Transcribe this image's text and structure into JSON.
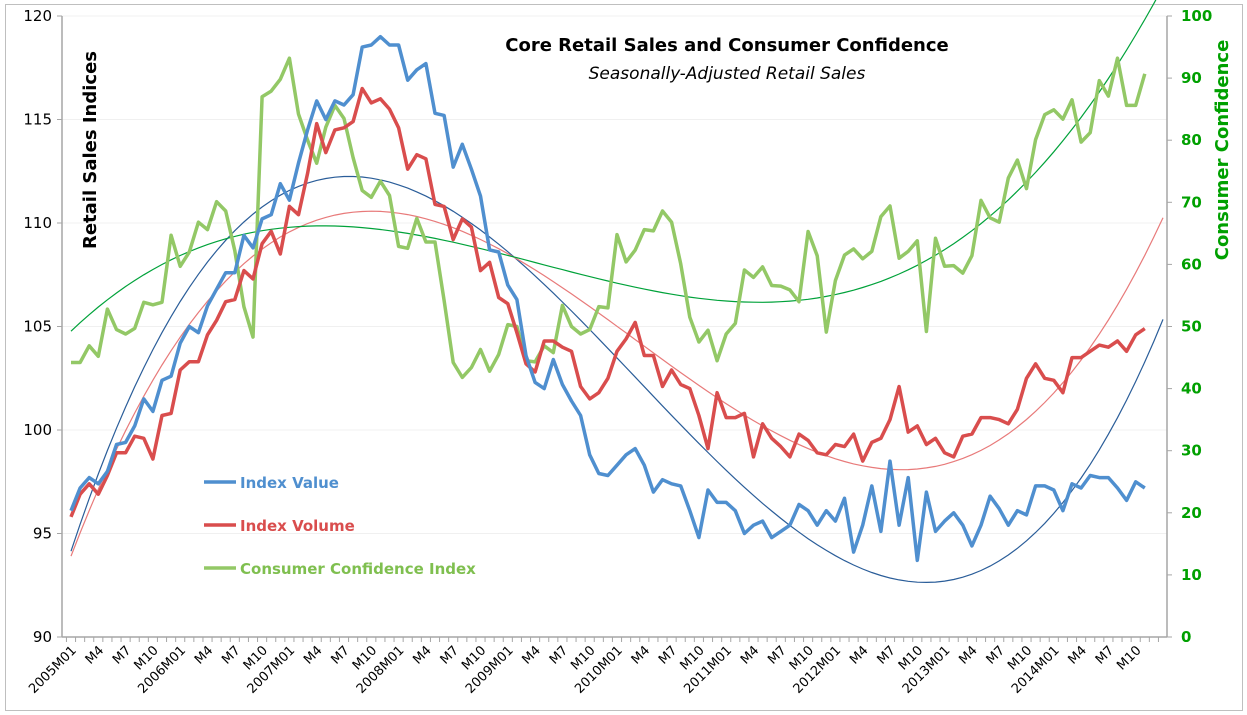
{
  "chart_data": {
    "type": "line",
    "title": "Core Retail Sales and Consumer Confidence",
    "subtitle": "Seasonally-Adjusted Retail Sales",
    "ylabel": "Retail Sales Indices",
    "y2label": "Consumer Confidence",
    "ylim": [
      90,
      120
    ],
    "y2lim": [
      0,
      100
    ],
    "yticks": [
      "90",
      "95",
      "100",
      "105",
      "110",
      "115",
      "120"
    ],
    "y2ticks": [
      "0",
      "10",
      "20",
      "30",
      "40",
      "50",
      "60",
      "70",
      "80",
      "90",
      "100"
    ],
    "xticks": [
      "2005M01",
      "M4",
      "M7",
      "M10",
      "2006M01",
      "M4",
      "M7",
      "M10",
      "2007M01",
      "M4",
      "M7",
      "M10",
      "2008M01",
      "M4",
      "M7",
      "M10",
      "2009M01",
      "M4",
      "M7",
      "M10",
      "2010M01",
      "M4",
      "M7",
      "M10",
      "2011M01",
      "M4",
      "M7",
      "M10",
      "2012M01",
      "M4",
      "M7",
      "M10",
      "2013M01",
      "M4",
      "M7",
      "M10",
      "2014M01",
      "M4",
      "M7",
      "M10"
    ],
    "grid": true,
    "legend_position": "lower-left",
    "colors": {
      "value": "#4f8fcf",
      "volume": "#d94d4d",
      "confidence": "#93c866",
      "value_trend": "#2a5d99",
      "volume_trend": "#e87a7a",
      "confidence_trend": "#00a23a",
      "right_axis": "#00a000"
    },
    "series": [
      {
        "name": "Index Value",
        "axis": "left",
        "values": [
          96.1,
          97.2,
          97.7,
          97.4,
          98.0,
          99.3,
          99.4,
          100.2,
          101.5,
          100.9,
          102.4,
          102.6,
          104.2,
          105.0,
          104.7,
          106.0,
          106.8,
          107.6,
          107.6,
          109.4,
          108.8,
          110.2,
          110.4,
          111.9,
          111.1,
          112.9,
          114.5,
          115.9,
          115.0,
          115.9,
          115.7,
          116.2,
          118.5,
          118.6,
          119.0,
          118.6,
          118.6,
          116.9,
          117.4,
          117.7,
          115.3,
          115.2,
          112.7,
          113.8,
          112.6,
          111.3,
          108.7,
          108.6,
          107.0,
          106.3,
          103.6,
          102.3,
          102.0,
          103.4,
          102.2,
          101.4,
          100.7,
          98.8,
          97.9,
          97.8,
          98.3,
          98.8,
          99.1,
          98.3,
          97.0,
          97.6,
          97.4,
          97.3,
          96.1,
          94.8,
          97.1,
          96.5,
          96.5,
          96.1,
          95.0,
          95.4,
          95.6,
          94.8,
          95.1,
          95.4,
          96.4,
          96.1,
          95.4,
          96.1,
          95.6,
          96.7,
          94.1,
          95.4,
          97.3,
          95.1,
          98.5,
          95.4,
          97.7,
          93.7,
          97.0,
          95.1,
          95.6,
          96.0,
          95.4,
          94.4,
          95.4,
          96.8,
          96.2,
          95.4,
          96.1,
          95.9,
          97.3,
          97.3,
          97.1,
          96.1,
          97.4,
          97.2,
          97.8,
          97.7,
          97.7,
          97.2,
          96.6,
          97.5,
          97.2
        ]
      },
      {
        "name": "Index Volume",
        "axis": "left",
        "values": [
          95.8,
          96.9,
          97.4,
          96.9,
          97.8,
          98.9,
          98.9,
          99.7,
          99.6,
          98.6,
          100.7,
          100.8,
          102.9,
          103.3,
          103.3,
          104.6,
          105.3,
          106.2,
          106.3,
          107.7,
          107.3,
          109.0,
          109.6,
          108.5,
          110.8,
          110.4,
          112.4,
          114.8,
          113.4,
          114.5,
          114.6,
          114.9,
          116.5,
          115.8,
          116.0,
          115.5,
          114.6,
          112.6,
          113.3,
          113.1,
          110.9,
          110.8,
          109.2,
          110.2,
          109.8,
          107.7,
          108.1,
          106.4,
          106.1,
          104.7,
          103.2,
          102.8,
          104.3,
          104.3,
          104.0,
          103.8,
          102.1,
          101.5,
          101.8,
          102.5,
          103.8,
          104.4,
          105.2,
          103.6,
          103.6,
          102.1,
          102.9,
          102.2,
          102.0,
          100.7,
          99.1,
          101.8,
          100.6,
          100.6,
          100.8,
          98.7,
          100.3,
          99.6,
          99.2,
          98.7,
          99.8,
          99.5,
          98.9,
          98.8,
          99.3,
          99.2,
          99.8,
          98.5,
          99.4,
          99.6,
          100.5,
          102.1,
          99.9,
          100.2,
          99.3,
          99.6,
          98.9,
          98.7,
          99.7,
          99.8,
          100.6,
          100.6,
          100.5,
          100.3,
          101.0,
          102.5,
          103.2,
          102.5,
          102.4,
          101.8,
          103.5,
          103.5,
          103.8,
          104.1,
          104.0,
          104.3,
          103.8,
          104.6,
          104.9
        ]
      },
      {
        "name": "Consumer Confidence Index",
        "axis": "right",
        "values": [
          44.2,
          44.2,
          46.9,
          45.2,
          52.8,
          49.5,
          48.8,
          49.7,
          53.9,
          53.5,
          53.9,
          64.7,
          59.7,
          62.0,
          66.8,
          65.6,
          70.1,
          68.6,
          62.2,
          53.2,
          48.3,
          87.0,
          87.9,
          89.8,
          93.2,
          84.2,
          80.0,
          76.3,
          82.1,
          85.6,
          83.5,
          77.2,
          71.9,
          70.8,
          73.4,
          71.1,
          62.9,
          62.6,
          67.4,
          63.6,
          63.6,
          54.2,
          44.2,
          41.8,
          43.4,
          46.3,
          42.8,
          45.5,
          50.3,
          50.0,
          44.5,
          44.3,
          46.9,
          45.8,
          53.4,
          50.0,
          48.8,
          49.5,
          53.2,
          53.0,
          64.8,
          60.4,
          62.3,
          65.6,
          65.4,
          68.6,
          66.8,
          60.1,
          51.5,
          47.5,
          49.4,
          44.5,
          48.8,
          50.5,
          59.1,
          57.9,
          59.6,
          56.6,
          56.5,
          55.9,
          54.0,
          65.3,
          61.4,
          49.1,
          57.4,
          61.5,
          62.5,
          60.9,
          62.1,
          67.7,
          69.4,
          61.0,
          62.1,
          63.8,
          49.2,
          64.2,
          59.7,
          59.8,
          58.6,
          61.4,
          70.3,
          67.5,
          66.8,
          73.9,
          76.8,
          72.2,
          80.1,
          84.1,
          84.9,
          83.4,
          86.5,
          79.7,
          81.2,
          89.6,
          87.1,
          93.2,
          85.6,
          85.6,
          90.7
        ]
      }
    ],
    "trendlines": [
      "polynomial fit: Index Value",
      "polynomial fit: Index Volume",
      "polynomial fit: Consumer Confidence Index"
    ]
  }
}
